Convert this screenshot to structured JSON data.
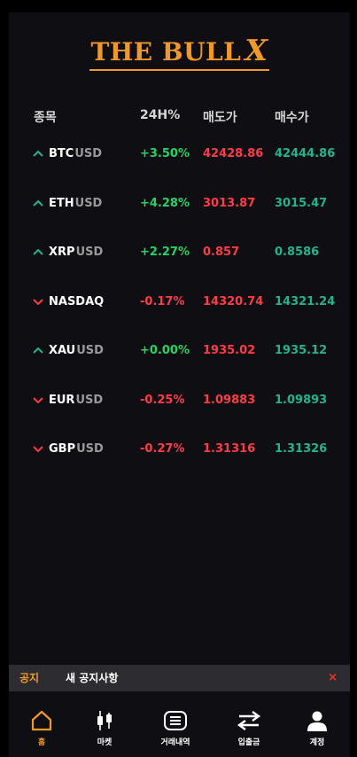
{
  "brand": {
    "name": "THE BULL",
    "suffix": "X"
  },
  "columns": {
    "symbol": "종목",
    "change": "24H%",
    "sell": "매도가",
    "buy": "매수가"
  },
  "rows": [
    {
      "base": "BTC",
      "quote": "USD",
      "direction": "up",
      "change": "+3.50%",
      "sell": "42428.86",
      "buy": "42444.86"
    },
    {
      "base": "ETH",
      "quote": "USD",
      "direction": "up",
      "change": "+4.28%",
      "sell": "3013.87",
      "buy": "3015.47"
    },
    {
      "base": "XRP",
      "quote": "USD",
      "direction": "up",
      "change": "+2.27%",
      "sell": "0.857",
      "buy": "0.8586"
    },
    {
      "base": "NASDAQ",
      "quote": "",
      "direction": "down",
      "change": "-0.17%",
      "sell": "14320.74",
      "buy": "14321.24"
    },
    {
      "base": "XAU",
      "quote": "USD",
      "direction": "up",
      "change": "+0.00%",
      "sell": "1935.02",
      "buy": "1935.12"
    },
    {
      "base": "EUR",
      "quote": "USD",
      "direction": "down",
      "change": "-0.25%",
      "sell": "1.09883",
      "buy": "1.09893"
    },
    {
      "base": "GBP",
      "quote": "USD",
      "direction": "down",
      "change": "-0.27%",
      "sell": "1.31316",
      "buy": "1.31326"
    }
  ],
  "notice": {
    "label": "공지",
    "text": "새 공지사항",
    "close": "×"
  },
  "nav": {
    "home": "홈",
    "market": "마켓",
    "history": "거래내역",
    "transfer": "입출금",
    "account": "계정"
  },
  "colors": {
    "accent": "#f0982a",
    "up": "#25d366",
    "down": "#ff3b46",
    "buy": "#22b48c",
    "background": "#0f0f13"
  }
}
